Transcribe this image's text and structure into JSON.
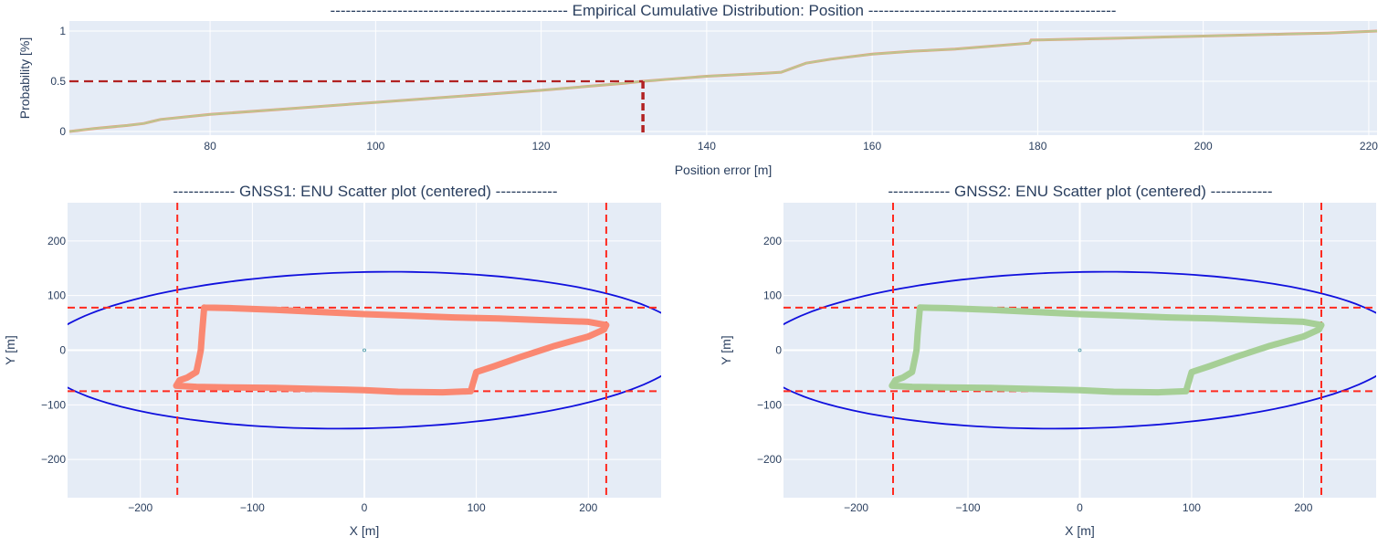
{
  "titles": {
    "cdf": "----------------------------------------------  Empirical Cumulative Distribution: Position  ------------------------------------------------",
    "gnss1": "------------ GNSS1: ENU Scatter plot (centered) ------------",
    "gnss2": "------------ GNSS2: ENU Scatter plot (centered) ------------"
  },
  "colors": {
    "plot_bg": "#e5ecf6",
    "grid": "#ffffff",
    "text": "#2a3f5f",
    "cdf_line": "#bcc58f",
    "cdf_line_under": "#f0957a",
    "median_marker": "#b22222",
    "ellipse": "#1010dd",
    "bounds": "#ff2a1f",
    "gnss1_track": "#fa8872",
    "gnss2_track": "#a6cf96"
  },
  "chart_data": [
    {
      "type": "line",
      "title": "----------------------------------------------  Empirical Cumulative Distribution: Position  ------------------------------------------------",
      "xlabel": "Position error [m]",
      "ylabel": "Probability [%]",
      "xlim": [
        63,
        221
      ],
      "ylim": [
        0,
        1
      ],
      "xticks": [
        80,
        100,
        120,
        140,
        160,
        180,
        200,
        220
      ],
      "yticks": [
        0,
        0.5,
        1
      ],
      "grid": true,
      "median": {
        "x": 132.3,
        "y": 0.5
      },
      "series": [
        {
          "x": [
            63,
            66,
            70,
            72,
            73,
            74,
            80,
            90,
            100,
            110,
            120,
            130,
            132.3,
            140,
            147,
            149,
            150,
            152,
            155,
            160,
            165,
            170,
            179,
            179.2,
            185,
            190,
            200,
            210,
            215,
            221
          ],
          "y": [
            0.0,
            0.03,
            0.06,
            0.08,
            0.1,
            0.12,
            0.17,
            0.23,
            0.29,
            0.35,
            0.41,
            0.48,
            0.5,
            0.55,
            0.58,
            0.59,
            0.62,
            0.68,
            0.72,
            0.77,
            0.8,
            0.82,
            0.88,
            0.91,
            0.92,
            0.93,
            0.95,
            0.97,
            0.98,
            1.0
          ]
        }
      ]
    },
    {
      "type": "scatter",
      "title": "------------ GNSS1: ENU Scatter plot (centered) ------------",
      "xlabel": "X [m]",
      "ylabel": "Y [m]",
      "xlim": [
        -265,
        265
      ],
      "ylim": [
        -270,
        270
      ],
      "xticks": [
        -200,
        -100,
        0,
        100,
        200
      ],
      "yticks": [
        -200,
        -100,
        0,
        100,
        200
      ],
      "grid": true,
      "bounds": {
        "x": [
          -167,
          216
        ],
        "y": [
          -75,
          78
        ]
      },
      "ellipse": {
        "center": [
          0,
          0
        ],
        "semi_major": 290,
        "semi_minor": 143,
        "angle_deg": 3
      },
      "series": [
        {
          "x": [
            -143,
            -120,
            -80,
            -40,
            0,
            40,
            80,
            120,
            160,
            200,
            216,
            214,
            200,
            170,
            140,
            115,
            100,
            95,
            70,
            30,
            0,
            -40,
            -80,
            -120,
            -150,
            -168,
            -165,
            -158,
            -150,
            -148,
            -146,
            -145,
            -143
          ],
          "y": [
            78,
            77,
            74,
            70,
            66,
            63,
            60,
            58,
            55,
            52,
            46,
            38,
            25,
            8,
            -12,
            -30,
            -40,
            -75,
            -77,
            -76,
            -73,
            -71,
            -69,
            -68,
            -67,
            -65,
            -55,
            -50,
            -40,
            -20,
            0,
            30,
            78
          ]
        }
      ]
    },
    {
      "type": "scatter",
      "title": "------------ GNSS2: ENU Scatter plot (centered) ------------",
      "xlabel": "X [m]",
      "ylabel": "Y [m]",
      "xlim": [
        -265,
        265
      ],
      "ylim": [
        -270,
        270
      ],
      "xticks": [
        -200,
        -100,
        0,
        100,
        200
      ],
      "yticks": [
        -200,
        -100,
        0,
        100,
        200
      ],
      "grid": true,
      "bounds": {
        "x": [
          -167,
          216
        ],
        "y": [
          -75,
          78
        ]
      },
      "ellipse": {
        "center": [
          0,
          0
        ],
        "semi_major": 290,
        "semi_minor": 143,
        "angle_deg": 3
      },
      "series": [
        {
          "x": [
            -143,
            -120,
            -80,
            -40,
            0,
            40,
            80,
            120,
            160,
            200,
            216,
            214,
            200,
            170,
            140,
            115,
            100,
            95,
            70,
            30,
            0,
            -40,
            -80,
            -120,
            -150,
            -168,
            -165,
            -158,
            -150,
            -148,
            -146,
            -145,
            -143
          ],
          "y": [
            78,
            77,
            74,
            70,
            66,
            63,
            60,
            58,
            55,
            52,
            46,
            38,
            25,
            8,
            -12,
            -30,
            -40,
            -75,
            -77,
            -76,
            -73,
            -71,
            -69,
            -68,
            -67,
            -65,
            -55,
            -50,
            -40,
            -20,
            0,
            30,
            78
          ]
        }
      ]
    }
  ]
}
